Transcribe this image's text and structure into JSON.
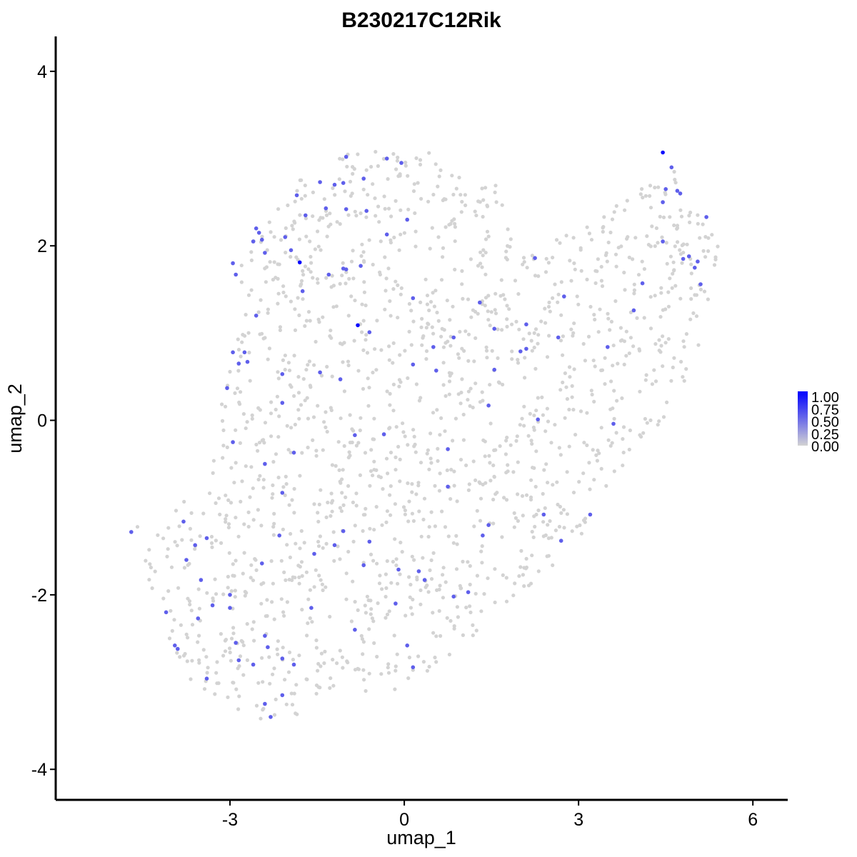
{
  "chart_data": {
    "type": "scatter",
    "title": "B230217C12Rik",
    "xlabel": "umap_1",
    "ylabel": "umap_2",
    "xlim": [
      -6.0,
      6.6
    ],
    "ylim": [
      -4.35,
      4.4
    ],
    "x_ticks": [
      -3,
      0,
      3,
      6
    ],
    "x_tick_labels": [
      "-3",
      "0",
      "3",
      "6"
    ],
    "y_ticks": [
      -4,
      -2,
      0,
      2,
      4
    ],
    "y_tick_labels": [
      "-4",
      "-2",
      "0",
      "2",
      "4"
    ],
    "grid": false,
    "legend_placement": "right",
    "colorscale": {
      "low": "#d3d3d3",
      "high": "#0000ff",
      "range": [
        0,
        1
      ]
    },
    "legend_labels": [
      "1.00",
      "0.75",
      "0.50",
      "0.25",
      "0.00"
    ],
    "background_points": {
      "color": "#d3d3d3",
      "value": 0,
      "approx_count": 1600,
      "region_outline": [
        [
          -4.6,
          -1.2
        ],
        [
          -4.2,
          -1.3
        ],
        [
          -3.5,
          -0.5
        ],
        [
          -3.1,
          0.3
        ],
        [
          -2.8,
          1.2
        ],
        [
          -2.9,
          1.9
        ],
        [
          -2.4,
          2.2
        ],
        [
          -1.8,
          2.8
        ],
        [
          -1.0,
          3.05
        ],
        [
          0.2,
          3.15
        ],
        [
          1.0,
          2.85
        ],
        [
          1.6,
          2.7
        ],
        [
          2.0,
          1.9
        ],
        [
          3.0,
          2.2
        ],
        [
          3.5,
          2.45
        ],
        [
          4.4,
          2.8
        ],
        [
          4.6,
          2.9
        ],
        [
          5.0,
          2.5
        ],
        [
          5.4,
          2.3
        ],
        [
          5.4,
          1.9
        ],
        [
          5.0,
          0.6
        ],
        [
          4.6,
          0.1
        ],
        [
          4.0,
          -0.3
        ],
        [
          3.6,
          -0.8
        ],
        [
          2.8,
          -1.6
        ],
        [
          2.4,
          -1.8
        ],
        [
          1.9,
          -2.0
        ],
        [
          1.0,
          -2.6
        ],
        [
          0.6,
          -2.8
        ],
        [
          -0.2,
          -3.1
        ],
        [
          -1.3,
          -3.2
        ],
        [
          -2.2,
          -3.5
        ],
        [
          -3.0,
          -3.3
        ],
        [
          -3.6,
          -3.1
        ],
        [
          -4.0,
          -2.6
        ],
        [
          -4.3,
          -2.2
        ],
        [
          -4.5,
          -1.5
        ]
      ]
    },
    "expressing_points": [
      {
        "x": 4.45,
        "y": 3.07,
        "v": 0.95
      },
      {
        "x": -1.8,
        "y": 1.81,
        "v": 1.0
      },
      {
        "x": -0.8,
        "y": 1.09,
        "v": 0.95
      },
      {
        "x": -4.7,
        "y": -1.28,
        "v": 0.55
      },
      {
        "x": -3.8,
        "y": -1.16,
        "v": 0.55
      },
      {
        "x": -3.6,
        "y": -1.43,
        "v": 0.55
      },
      {
        "x": -3.75,
        "y": -1.6,
        "v": 0.55
      },
      {
        "x": -3.4,
        "y": -1.35,
        "v": 0.55
      },
      {
        "x": -3.5,
        "y": -1.83,
        "v": 0.55
      },
      {
        "x": -3.3,
        "y": -2.12,
        "v": 0.55
      },
      {
        "x": -4.1,
        "y": -2.2,
        "v": 0.55
      },
      {
        "x": -3.95,
        "y": -2.58,
        "v": 0.55
      },
      {
        "x": -3.9,
        "y": -2.62,
        "v": 0.55
      },
      {
        "x": -3.55,
        "y": -2.27,
        "v": 0.55
      },
      {
        "x": -3.4,
        "y": -2.96,
        "v": 0.55
      },
      {
        "x": -2.9,
        "y": -2.55,
        "v": 0.55
      },
      {
        "x": -2.85,
        "y": -2.75,
        "v": 0.55
      },
      {
        "x": -2.6,
        "y": -2.8,
        "v": 0.55
      },
      {
        "x": -2.4,
        "y": -3.25,
        "v": 0.55
      },
      {
        "x": -2.3,
        "y": -3.4,
        "v": 0.55
      },
      {
        "x": -2.1,
        "y": -3.15,
        "v": 0.55
      },
      {
        "x": -2.1,
        "y": -2.73,
        "v": 0.55
      },
      {
        "x": -1.9,
        "y": -2.8,
        "v": 0.55
      },
      {
        "x": -2.35,
        "y": -2.6,
        "v": 0.55
      },
      {
        "x": -2.4,
        "y": -2.47,
        "v": 0.55
      },
      {
        "x": -2.45,
        "y": -1.64,
        "v": 0.55
      },
      {
        "x": -2.15,
        "y": -1.32,
        "v": 0.55
      },
      {
        "x": -3.0,
        "y": -2.0,
        "v": 0.55
      },
      {
        "x": -3.0,
        "y": -2.15,
        "v": 0.55
      },
      {
        "x": -2.4,
        "y": -0.5,
        "v": 0.55
      },
      {
        "x": -2.1,
        "y": -0.83,
        "v": 0.55
      },
      {
        "x": -1.9,
        "y": -0.37,
        "v": 0.55
      },
      {
        "x": -2.1,
        "y": 0.2,
        "v": 0.55
      },
      {
        "x": -2.1,
        "y": 0.53,
        "v": 0.55
      },
      {
        "x": -2.95,
        "y": -0.25,
        "v": 0.55
      },
      {
        "x": -3.05,
        "y": 0.37,
        "v": 0.55
      },
      {
        "x": -2.85,
        "y": 0.65,
        "v": 0.55
      },
      {
        "x": -2.95,
        "y": 0.78,
        "v": 0.55
      },
      {
        "x": -2.75,
        "y": 0.78,
        "v": 0.55
      },
      {
        "x": -2.7,
        "y": 0.67,
        "v": 0.55
      },
      {
        "x": -2.55,
        "y": 1.2,
        "v": 0.55
      },
      {
        "x": -2.9,
        "y": 1.67,
        "v": 0.55
      },
      {
        "x": -2.95,
        "y": 1.8,
        "v": 0.55
      },
      {
        "x": -2.6,
        "y": 2.05,
        "v": 0.55
      },
      {
        "x": -2.55,
        "y": 2.2,
        "v": 0.55
      },
      {
        "x": -2.5,
        "y": 2.15,
        "v": 0.55
      },
      {
        "x": -2.45,
        "y": 2.07,
        "v": 0.55
      },
      {
        "x": -2.4,
        "y": 1.92,
        "v": 0.55
      },
      {
        "x": -2.05,
        "y": 2.1,
        "v": 0.55
      },
      {
        "x": -1.95,
        "y": 1.95,
        "v": 0.55
      },
      {
        "x": -1.85,
        "y": 2.58,
        "v": 0.55
      },
      {
        "x": -1.7,
        "y": 2.35,
        "v": 0.55
      },
      {
        "x": -1.75,
        "y": 1.48,
        "v": 0.55
      },
      {
        "x": -1.45,
        "y": 2.73,
        "v": 0.55
      },
      {
        "x": -1.35,
        "y": 2.43,
        "v": 0.55
      },
      {
        "x": -1.3,
        "y": 1.67,
        "v": 0.55
      },
      {
        "x": -1.2,
        "y": 2.7,
        "v": 0.55
      },
      {
        "x": -1.05,
        "y": 2.72,
        "v": 0.55
      },
      {
        "x": -1.0,
        "y": 1.73,
        "v": 0.55
      },
      {
        "x": -1.05,
        "y": 1.74,
        "v": 0.55
      },
      {
        "x": -1.0,
        "y": 3.02,
        "v": 0.55
      },
      {
        "x": -1.0,
        "y": 2.42,
        "v": 0.55
      },
      {
        "x": -0.7,
        "y": 2.77,
        "v": 0.55
      },
      {
        "x": -0.65,
        "y": 2.4,
        "v": 0.55
      },
      {
        "x": -0.75,
        "y": 1.77,
        "v": 0.55
      },
      {
        "x": -0.6,
        "y": 1.01,
        "v": 0.55
      },
      {
        "x": -0.3,
        "y": 3.0,
        "v": 0.55
      },
      {
        "x": -0.3,
        "y": 2.13,
        "v": 0.55
      },
      {
        "x": -0.05,
        "y": 2.95,
        "v": 0.55
      },
      {
        "x": 0.05,
        "y": 2.3,
        "v": 0.55
      },
      {
        "x": 0.15,
        "y": 1.4,
        "v": 0.55
      },
      {
        "x": -1.45,
        "y": 0.55,
        "v": 0.55
      },
      {
        "x": -1.1,
        "y": 0.47,
        "v": 0.55
      },
      {
        "x": -0.85,
        "y": -0.17,
        "v": 0.55
      },
      {
        "x": -0.35,
        "y": -0.16,
        "v": 0.55
      },
      {
        "x": 0.15,
        "y": 0.64,
        "v": 0.55
      },
      {
        "x": 0.5,
        "y": 0.84,
        "v": 0.55
      },
      {
        "x": 0.55,
        "y": 0.57,
        "v": 0.55
      },
      {
        "x": 0.85,
        "y": 0.95,
        "v": 0.55
      },
      {
        "x": 1.3,
        "y": 1.35,
        "v": 0.55
      },
      {
        "x": 1.55,
        "y": 1.05,
        "v": 0.55
      },
      {
        "x": 1.55,
        "y": 0.58,
        "v": 0.55
      },
      {
        "x": 1.45,
        "y": 0.17,
        "v": 0.55
      },
      {
        "x": 2.0,
        "y": 0.79,
        "v": 0.55
      },
      {
        "x": 2.1,
        "y": 1.1,
        "v": 0.55
      },
      {
        "x": 2.1,
        "y": 0.82,
        "v": 0.55
      },
      {
        "x": 2.25,
        "y": 1.86,
        "v": 0.55
      },
      {
        "x": 2.65,
        "y": 0.95,
        "v": 0.55
      },
      {
        "x": 2.75,
        "y": 1.42,
        "v": 0.55
      },
      {
        "x": 2.3,
        "y": 0.01,
        "v": 0.55
      },
      {
        "x": 3.5,
        "y": 0.84,
        "v": 0.55
      },
      {
        "x": 3.6,
        "y": -0.04,
        "v": 0.55
      },
      {
        "x": 3.95,
        "y": 1.26,
        "v": 0.55
      },
      {
        "x": 4.1,
        "y": 1.57,
        "v": 0.55
      },
      {
        "x": 4.45,
        "y": 2.5,
        "v": 0.55
      },
      {
        "x": 4.45,
        "y": 2.05,
        "v": 0.55
      },
      {
        "x": 4.5,
        "y": 2.65,
        "v": 0.55
      },
      {
        "x": 4.6,
        "y": 2.9,
        "v": 0.55
      },
      {
        "x": 4.7,
        "y": 2.63,
        "v": 0.55
      },
      {
        "x": 4.75,
        "y": 2.6,
        "v": 0.55
      },
      {
        "x": 4.8,
        "y": 1.85,
        "v": 0.55
      },
      {
        "x": 4.9,
        "y": 1.88,
        "v": 0.55
      },
      {
        "x": 5.0,
        "y": 1.75,
        "v": 0.55
      },
      {
        "x": 5.05,
        "y": 1.82,
        "v": 0.55
      },
      {
        "x": 5.1,
        "y": 1.56,
        "v": 0.55
      },
      {
        "x": 5.2,
        "y": 2.33,
        "v": 0.55
      },
      {
        "x": 0.75,
        "y": -0.33,
        "v": 0.55
      },
      {
        "x": 0.75,
        "y": -0.76,
        "v": 0.55
      },
      {
        "x": 1.45,
        "y": -1.2,
        "v": 0.55
      },
      {
        "x": 1.35,
        "y": -1.32,
        "v": 0.55
      },
      {
        "x": 2.4,
        "y": -1.08,
        "v": 0.55
      },
      {
        "x": 2.7,
        "y": -1.38,
        "v": 0.55
      },
      {
        "x": 3.2,
        "y": -1.08,
        "v": 0.55
      },
      {
        "x": -1.05,
        "y": -1.27,
        "v": 0.55
      },
      {
        "x": -1.2,
        "y": -1.43,
        "v": 0.55
      },
      {
        "x": -0.6,
        "y": -1.39,
        "v": 0.55
      },
      {
        "x": -0.7,
        "y": -1.66,
        "v": 0.55
      },
      {
        "x": -1.55,
        "y": -1.53,
        "v": 0.55
      },
      {
        "x": -0.1,
        "y": -1.71,
        "v": 0.55
      },
      {
        "x": 0.25,
        "y": -1.73,
        "v": 0.55
      },
      {
        "x": 0.35,
        "y": -1.83,
        "v": 0.55
      },
      {
        "x": 0.85,
        "y": -2.02,
        "v": 0.55
      },
      {
        "x": 1.1,
        "y": -1.97,
        "v": 0.55
      },
      {
        "x": -0.15,
        "y": -2.1,
        "v": 0.55
      },
      {
        "x": -1.6,
        "y": -2.15,
        "v": 0.55
      },
      {
        "x": -0.85,
        "y": -2.4,
        "v": 0.55
      },
      {
        "x": 0.05,
        "y": -2.58,
        "v": 0.55
      },
      {
        "x": 0.15,
        "y": -2.83,
        "v": 0.55
      }
    ]
  }
}
